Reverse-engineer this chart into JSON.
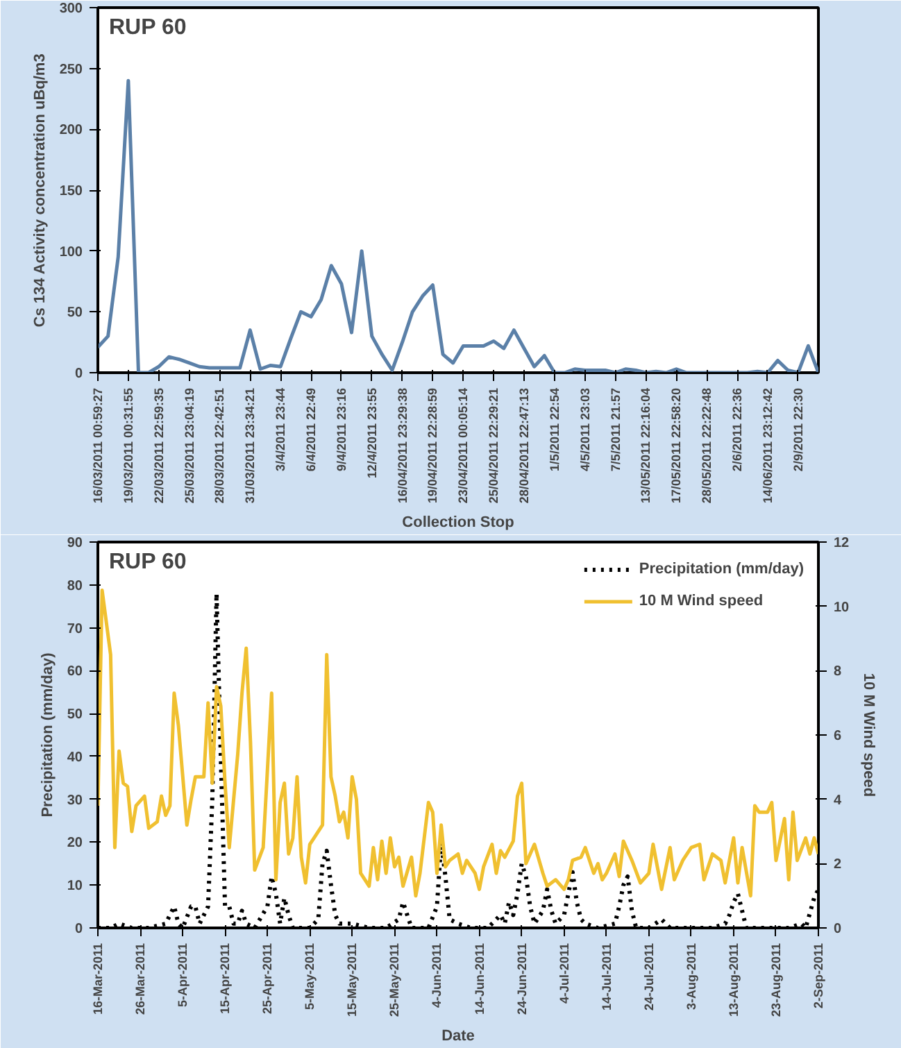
{
  "chart_data": [
    {
      "type": "line",
      "annotations": [
        "RUP 60"
      ],
      "ylabel": "Cs 134 Activity concentration uBq/m3",
      "xlabel": "Collection Stop",
      "categories": [
        "16/03/2011 00:59:27",
        null,
        null,
        "19/03/2011 00:31:55",
        null,
        null,
        "22/03/2011 22:59:35",
        null,
        null,
        "25/03/2011 23:04:19",
        null,
        null,
        "28/03/2011 22:42:51",
        null,
        null,
        "31/03/2011 23:34:21",
        null,
        null,
        "3/4/2011 23:44",
        null,
        null,
        "6/4/2011 22:49",
        null,
        null,
        "9/4/2011 23:16",
        null,
        null,
        "12/4/2011 23:55",
        null,
        null,
        "16/04/2011 23:29:38",
        null,
        null,
        "19/04/2011 22:28:59",
        null,
        null,
        "23/04/2011 00:05:14",
        null,
        null,
        "25/04/2011 22:29:21",
        null,
        null,
        "28/04/2011 22:47:13",
        null,
        null,
        "1/5/2011 22:54",
        null,
        null,
        "4/5/2011 23:03",
        null,
        null,
        "7/5/2011 21:57",
        null,
        null,
        "13/05/2011 22:16:04",
        null,
        null,
        "17/05/2011 22:58:20",
        null,
        null,
        "28/05/2011 22:22:48",
        null,
        null,
        "2/6/2011 22:36",
        null,
        null,
        "14/06/2011 23:12:42",
        null,
        null,
        "2/9/2011 22:30",
        null,
        null
      ],
      "values": [
        21,
        30,
        95,
        240,
        0,
        0,
        5,
        13,
        11,
        8,
        5,
        4,
        4,
        4,
        4,
        35,
        3,
        6,
        5,
        28,
        50,
        46,
        60,
        88,
        73,
        33,
        100,
        30,
        15,
        2,
        25,
        50,
        63,
        72,
        15,
        8,
        22,
        22,
        22,
        26,
        20,
        35,
        20,
        5,
        14,
        0,
        0,
        3,
        2,
        2,
        2,
        0,
        3,
        2,
        0,
        1,
        0,
        3,
        0,
        0,
        0,
        0,
        0,
        0,
        0,
        1,
        0,
        10,
        2,
        0,
        22,
        0
      ],
      "color": "#5b80a8",
      "ylim": [
        0,
        300
      ],
      "yticks": [
        0,
        50,
        100,
        150,
        200,
        250,
        300
      ],
      "grid": false,
      "legend": false
    },
    {
      "type": "line",
      "annotations": [
        "RUP 60"
      ],
      "xlabel": "Date",
      "ylabel": "Precipitation (mm/day)",
      "y2label": "10 M Wind speed",
      "xlim": [
        "2011-03-16",
        "2011-09-02"
      ],
      "xticks": [
        {
          "value": "2011-03-16",
          "label": "16-Mar-2011"
        },
        {
          "value": "2011-03-26",
          "label": "26-Mar-2011"
        },
        {
          "value": "2011-04-05",
          "label": "5-Apr-2011"
        },
        {
          "value": "2011-04-15",
          "label": "15-Apr-2011"
        },
        {
          "value": "2011-04-25",
          "label": "25-Apr-2011"
        },
        {
          "value": "2011-05-05",
          "label": "5-May-2011"
        },
        {
          "value": "2011-05-15",
          "label": "15-May-2011"
        },
        {
          "value": "2011-05-25",
          "label": "25-May-2011"
        },
        {
          "value": "2011-06-04",
          "label": "4-Jun-2011"
        },
        {
          "value": "2011-06-14",
          "label": "14-Jun-2011"
        },
        {
          "value": "2011-06-24",
          "label": "24-Jun-2011"
        },
        {
          "value": "2011-07-04",
          "label": "4-Jul-2011"
        },
        {
          "value": "2011-07-14",
          "label": "14-Jul-2011"
        },
        {
          "value": "2011-07-24",
          "label": "24-Jul-2011"
        },
        {
          "value": "2011-08-03",
          "label": "3-Aug-2011"
        },
        {
          "value": "2011-08-13",
          "label": "13-Aug-2011"
        },
        {
          "value": "2011-08-23",
          "label": "23-Aug-2011"
        },
        {
          "value": "2011-09-02",
          "label": "2-Sep-2011"
        }
      ],
      "ylim": [
        0,
        90
      ],
      "yticks": [
        0,
        10,
        20,
        30,
        40,
        50,
        60,
        70,
        80,
        90
      ],
      "y2lim": [
        0,
        12
      ],
      "y2ticks": [
        0,
        2,
        4,
        6,
        8,
        10,
        12
      ],
      "grid": false,
      "legend": "top right",
      "series": [
        {
          "name": "Precipitation (mm/day)",
          "color": "#000000",
          "line_style": "dotted",
          "x": [
            "2011-03-16",
            "2011-03-19",
            "2011-03-21",
            "2011-03-24",
            "2011-03-28",
            "2011-04-01",
            "2011-04-03",
            "2011-04-04",
            "2011-04-05",
            "2011-04-07",
            "2011-04-08",
            "2011-04-09",
            "2011-04-11",
            "2011-04-12",
            "2011-04-13",
            "2011-04-14",
            "2011-04-15",
            "2011-04-16",
            "2011-04-17",
            "2011-04-18",
            "2011-04-19",
            "2011-04-20",
            "2011-04-22",
            "2011-04-25",
            "2011-04-26",
            "2011-04-27",
            "2011-04-28",
            "2011-04-29",
            "2011-04-30",
            "2011-05-01",
            "2011-05-05",
            "2011-05-07",
            "2011-05-08",
            "2011-05-09",
            "2011-05-10",
            "2011-05-11",
            "2011-05-12",
            "2011-05-15",
            "2011-05-19",
            "2011-05-23",
            "2011-05-26",
            "2011-05-27",
            "2011-05-28",
            "2011-05-29",
            "2011-06-02",
            "2011-06-04",
            "2011-06-05",
            "2011-06-06",
            "2011-06-07",
            "2011-06-09",
            "2011-06-12",
            "2011-06-16",
            "2011-06-19",
            "2011-06-20",
            "2011-06-21",
            "2011-06-22",
            "2011-06-23",
            "2011-06-24",
            "2011-06-25",
            "2011-06-26",
            "2011-06-27",
            "2011-06-29",
            "2011-06-30",
            "2011-07-01",
            "2011-07-02",
            "2011-07-04",
            "2011-07-05",
            "2011-07-06",
            "2011-07-07",
            "2011-07-08",
            "2011-07-09",
            "2011-07-12",
            "2011-07-16",
            "2011-07-17",
            "2011-07-18",
            "2011-07-19",
            "2011-07-20",
            "2011-07-21",
            "2011-07-24",
            "2011-07-27",
            "2011-07-29",
            "2011-08-03",
            "2011-08-08",
            "2011-08-11",
            "2011-08-12",
            "2011-08-13",
            "2011-08-14",
            "2011-08-15",
            "2011-08-16",
            "2011-08-21",
            "2011-08-26",
            "2011-08-29",
            "2011-08-30",
            "2011-09-01",
            "2011-09-02"
          ],
          "values": [
            0,
            0,
            1,
            0,
            0,
            1,
            5,
            1,
            0,
            5,
            5,
            1,
            5,
            30,
            78,
            40,
            5,
            5,
            1,
            1,
            4,
            1,
            0,
            5,
            12,
            8,
            1,
            7,
            3,
            0,
            0,
            2,
            15,
            18,
            10,
            3,
            1,
            1,
            0,
            0,
            2,
            6,
            3,
            0,
            0,
            5,
            20,
            12,
            2,
            1,
            0,
            0,
            3,
            1,
            6,
            3,
            8,
            15,
            12,
            5,
            1,
            4,
            9,
            4,
            1,
            3,
            8,
            13,
            6,
            2,
            1,
            0,
            1,
            5,
            10,
            12,
            4,
            0,
            0,
            2,
            0,
            0,
            0,
            1,
            3,
            6,
            8,
            4,
            0,
            0,
            0,
            1,
            0,
            7,
            9
          ]
        },
        {
          "name": "10 M Wind speed",
          "color": "#f0c030",
          "axis": "y2",
          "x": [
            "2011-03-16",
            "2011-03-17",
            "2011-03-19",
            "2011-03-20",
            "2011-03-21",
            "2011-03-22",
            "2011-03-23",
            "2011-03-24",
            "2011-03-25",
            "2011-03-27",
            "2011-03-28",
            "2011-03-30",
            "2011-03-31",
            "2011-04-01",
            "2011-04-02",
            "2011-04-03",
            "2011-04-04",
            "2011-04-06",
            "2011-04-07",
            "2011-04-08",
            "2011-04-10",
            "2011-04-11",
            "2011-04-12",
            "2011-04-13",
            "2011-04-14",
            "2011-04-15",
            "2011-04-16",
            "2011-04-18",
            "2011-04-19",
            "2011-04-20",
            "2011-04-21",
            "2011-04-22",
            "2011-04-24",
            "2011-04-26",
            "2011-04-27",
            "2011-04-28",
            "2011-04-29",
            "2011-04-30",
            "2011-05-01",
            "2011-05-02",
            "2011-05-03",
            "2011-05-04",
            "2011-05-05",
            "2011-05-06",
            "2011-05-08",
            "2011-05-09",
            "2011-05-10",
            "2011-05-11",
            "2011-05-12",
            "2011-05-13",
            "2011-05-14",
            "2011-05-15",
            "2011-05-16",
            "2011-05-17",
            "2011-05-19",
            "2011-05-20",
            "2011-05-21",
            "2011-05-22",
            "2011-05-23",
            "2011-05-24",
            "2011-05-25",
            "2011-05-26",
            "2011-05-27",
            "2011-05-29",
            "2011-05-30",
            "2011-05-31",
            "2011-06-02",
            "2011-06-03",
            "2011-06-04",
            "2011-06-05",
            "2011-06-06",
            "2011-06-07",
            "2011-06-09",
            "2011-06-10",
            "2011-06-11",
            "2011-06-13",
            "2011-06-14",
            "2011-06-15",
            "2011-06-17",
            "2011-06-18",
            "2011-06-19",
            "2011-06-20",
            "2011-06-22",
            "2011-06-23",
            "2011-06-24",
            "2011-06-25",
            "2011-06-27",
            "2011-06-29",
            "2011-06-30",
            "2011-07-02",
            "2011-07-04",
            "2011-07-05",
            "2011-07-06",
            "2011-07-08",
            "2011-07-09",
            "2011-07-11",
            "2011-07-12",
            "2011-07-13",
            "2011-07-14",
            "2011-07-16",
            "2011-07-17",
            "2011-07-18",
            "2011-07-20",
            "2011-07-22",
            "2011-07-24",
            "2011-07-25",
            "2011-07-27",
            "2011-07-29",
            "2011-07-30",
            "2011-08-01",
            "2011-08-03",
            "2011-08-05",
            "2011-08-06",
            "2011-08-08",
            "2011-08-10",
            "2011-08-11",
            "2011-08-13",
            "2011-08-14",
            "2011-08-15",
            "2011-08-17",
            "2011-08-18",
            "2011-08-19",
            "2011-08-21",
            "2011-08-22",
            "2011-08-23",
            "2011-08-25",
            "2011-08-26",
            "2011-08-27",
            "2011-08-28",
            "2011-08-30",
            "2011-08-31",
            "2011-09-01",
            "2011-09-02"
          ],
          "values": [
            3.8,
            10.5,
            8.5,
            2.5,
            5.5,
            4.5,
            4.4,
            3.0,
            3.8,
            4.1,
            3.1,
            3.3,
            4.1,
            3.5,
            3.8,
            7.3,
            6.3,
            3.2,
            4.0,
            4.7,
            4.7,
            7.0,
            4.5,
            7.5,
            6.9,
            4.5,
            2.5,
            5.4,
            7.3,
            8.7,
            5.8,
            1.8,
            2.5,
            7.3,
            1.5,
            3.9,
            4.5,
            2.3,
            2.8,
            4.7,
            2.2,
            1.4,
            2.6,
            2.8,
            3.2,
            8.5,
            4.7,
            4.1,
            3.3,
            3.6,
            2.8,
            4.7,
            4.0,
            1.7,
            1.3,
            2.5,
            1.5,
            2.7,
            1.7,
            2.8,
            1.9,
            2.2,
            1.3,
            2.2,
            1.0,
            1.7,
            3.9,
            3.6,
            1.7,
            3.2,
            1.9,
            2.1,
            2.3,
            1.7,
            2.1,
            1.7,
            1.2,
            1.9,
            2.6,
            1.7,
            2.4,
            2.2,
            2.7,
            4.1,
            4.5,
            2.0,
            2.6,
            1.7,
            1.3,
            1.5,
            1.2,
            1.5,
            2.1,
            2.2,
            2.5,
            1.7,
            2.0,
            1.5,
            1.7,
            2.3,
            1.6,
            2.7,
            2.1,
            1.4,
            1.7,
            2.6,
            1.2,
            2.5,
            1.5,
            2.1,
            2.5,
            2.6,
            1.5,
            2.3,
            2.1,
            1.4,
            2.8,
            1.4,
            2.5,
            1.0,
            3.8,
            3.6,
            3.6,
            3.9,
            2.1,
            3.4,
            1.5,
            3.6,
            2.1,
            2.8,
            2.3,
            2.8,
            2.3
          ]
        }
      ]
    }
  ]
}
